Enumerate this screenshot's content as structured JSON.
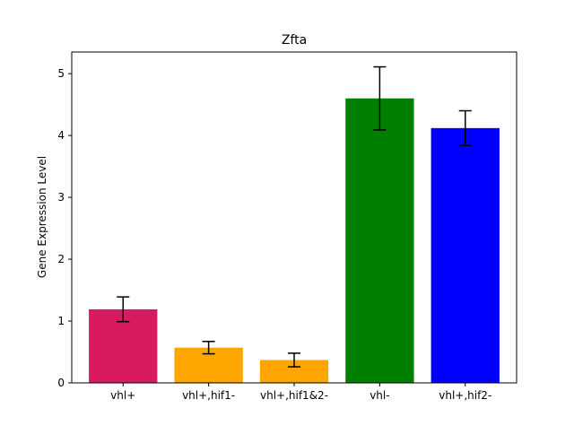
{
  "chart_data": {
    "type": "bar",
    "title": "Zfta",
    "xlabel": "",
    "ylabel": "Gene Expression Level",
    "categories": [
      "vhl+",
      "vhl+,hif1-",
      "vhl+,hif1&2-",
      "vhl-",
      "vhl+,hif2-"
    ],
    "values": [
      1.19,
      0.57,
      0.37,
      4.6,
      4.12
    ],
    "errors": [
      0.2,
      0.1,
      0.11,
      0.51,
      0.28
    ],
    "colors": [
      "#d81b60",
      "#ffa500",
      "#ffa500",
      "#008000",
      "#0000ff"
    ],
    "ylim": [
      0,
      5.35
    ],
    "yticks": [
      0,
      1,
      2,
      3,
      4,
      5
    ],
    "ytick_labels": [
      "0",
      "1",
      "2",
      "3",
      "4",
      "5"
    ],
    "grid": false,
    "legend": false
  }
}
